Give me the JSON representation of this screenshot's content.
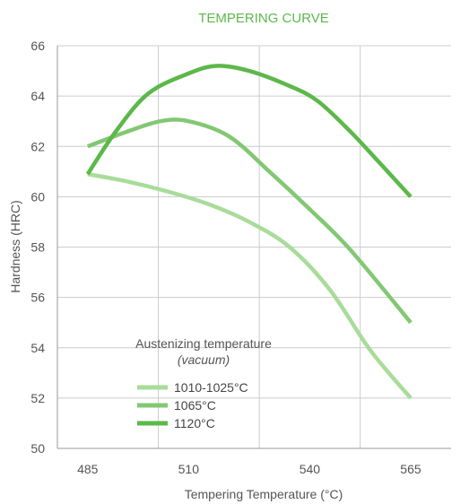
{
  "chart_data": {
    "type": "line",
    "title": "TEMPERING CURVE",
    "xlabel": "Tempering Temperature (°C)",
    "ylabel": "Hardness (HRC)",
    "xlim": [
      477.5,
      575
    ],
    "ylim": [
      50,
      66
    ],
    "xticks": [
      485,
      510,
      540,
      565
    ],
    "yticks": [
      50,
      52,
      54,
      56,
      58,
      60,
      62,
      64,
      66
    ],
    "x_gridlines": [
      502.5,
      527.5,
      552.5
    ],
    "y_gridlines": [
      52,
      54,
      56,
      58,
      60,
      62,
      64,
      66
    ],
    "legend": {
      "title": "Austenizing temperature",
      "subtitle": "(vacuum)",
      "position": "bottom-left"
    },
    "series": [
      {
        "name": "1010-1025°C",
        "color": "#a9dc9a",
        "points": [
          [
            485,
            60.9
          ],
          [
            495,
            60.6
          ],
          [
            505,
            60.2
          ],
          [
            515,
            59.7
          ],
          [
            525,
            59.0
          ],
          [
            535,
            58.0
          ],
          [
            545,
            56.3
          ],
          [
            555,
            53.9
          ],
          [
            565,
            52.0
          ]
        ]
      },
      {
        "name": "1065°C",
        "color": "#82c873",
        "points": [
          [
            485,
            62.0
          ],
          [
            495,
            62.6
          ],
          [
            503,
            63.0
          ],
          [
            510,
            63.0
          ],
          [
            520,
            62.4
          ],
          [
            530,
            61.0
          ],
          [
            540,
            59.5
          ],
          [
            550,
            57.9
          ],
          [
            565,
            55.0
          ]
        ]
      },
      {
        "name": "1120°C",
        "color": "#5cb84a",
        "points": [
          [
            485,
            60.9
          ],
          [
            492,
            62.6
          ],
          [
            500,
            64.1
          ],
          [
            510,
            64.9
          ],
          [
            517,
            65.2
          ],
          [
            525,
            65.0
          ],
          [
            535,
            64.4
          ],
          [
            542,
            63.8
          ],
          [
            550,
            62.6
          ],
          [
            557,
            61.4
          ],
          [
            565,
            60.0
          ]
        ]
      }
    ]
  }
}
